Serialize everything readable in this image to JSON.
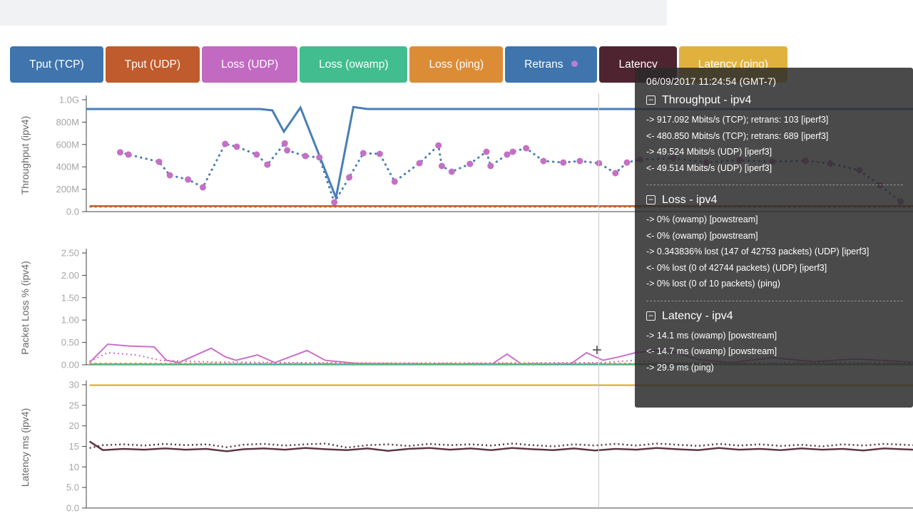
{
  "cursor": {
    "glyph": "+"
  },
  "legend": {
    "buttons": [
      {
        "label": "Tput (TCP)",
        "color": "#3f74ad",
        "dot": null
      },
      {
        "label": "Tput (UDP)",
        "color": "#bf5b2d",
        "dot": null
      },
      {
        "label": "Loss (UDP)",
        "color": "#c269c2",
        "dot": null
      },
      {
        "label": "Loss (owamp)",
        "color": "#41bd90",
        "dot": null
      },
      {
        "label": "Loss (ping)",
        "color": "#dd8c36",
        "dot": null
      },
      {
        "label": "Retrans",
        "color": "#3f74ad",
        "dot": "#b97fd4"
      },
      {
        "label": "Latency",
        "color": "#4e2430",
        "dot": null
      },
      {
        "label": "Latency (ping)",
        "color": "#e0b23d",
        "dot": null
      }
    ]
  },
  "tooltip": {
    "timestamp": "06/09/2017 11:24:54 (GMT-7)",
    "collapse_glyph": "−",
    "sections": [
      {
        "title": "Throughput - ipv4",
        "lines": [
          "-> 917.092 Mbits/s (TCP); retrans: 103 [iperf3]",
          "<- 480.850 Mbits/s (TCP); retrans: 689 [iperf3]",
          "-> 49.524 Mbits/s (UDP) [iperf3]",
          "<- 49.514 Mbits/s (UDP) [iperf3]"
        ]
      },
      {
        "title": "Loss - ipv4",
        "lines": [
          "-> 0% (owamp) [powstream]",
          "<- 0% (owamp) [powstream]",
          "-> 0.343836% lost (147 of 42753 packets) (UDP) [iperf3]",
          "<- 0% lost (0 of 42744 packets) (UDP) [iperf3]",
          "-> 0% lost (0 of 10 packets) (ping)"
        ]
      },
      {
        "title": "Latency - ipv4",
        "lines": [
          "-> 14.1 ms (owamp) [powstream]",
          "<- 14.7 ms (owamp) [powstream]",
          "-> 29.9 ms (ping)"
        ]
      }
    ]
  },
  "chart_data": [
    {
      "type": "line",
      "ylabel": "Throughput (ipv4)",
      "ylim": [
        0,
        1000
      ],
      "yticks": [
        [
          1000,
          "1.0G"
        ],
        [
          800,
          "800M"
        ],
        [
          600,
          "600M"
        ],
        [
          400,
          "400M"
        ],
        [
          200,
          "200M"
        ],
        [
          0,
          "0.0"
        ]
      ],
      "series": [
        {
          "name": "tput-tcp",
          "color": "#4a7eb5",
          "width": 3,
          "values": [
            [
              0,
              917
            ],
            [
              0.21,
              917
            ],
            [
              0.225,
              905
            ],
            [
              0.239,
              715
            ],
            [
              0.259,
              930
            ],
            [
              0.302,
              125
            ],
            [
              0.323,
              935
            ],
            [
              0.34,
              917
            ],
            [
              0.6,
              917
            ],
            [
              1,
              917
            ]
          ]
        },
        {
          "name": "retrans",
          "color": "#4a7eb5",
          "width": 3,
          "dash": "0.5,7",
          "linecap": "round",
          "marker": "#c470c4",
          "values": [
            [
              0.041,
              530
            ],
            [
              0.051,
              510
            ],
            [
              0.088,
              445
            ],
            [
              0.101,
              325
            ],
            [
              0.123,
              287
            ],
            [
              0.141,
              217
            ],
            [
              0.168,
              605
            ],
            [
              0.182,
              580
            ],
            [
              0.206,
              510
            ],
            [
              0.219,
              420
            ],
            [
              0.24,
              610
            ],
            [
              0.243,
              548
            ],
            [
              0.265,
              497
            ],
            [
              0.282,
              484
            ],
            [
              0.3,
              83
            ],
            [
              0.318,
              306
            ],
            [
              0.335,
              522
            ],
            [
              0.355,
              516
            ],
            [
              0.373,
              268
            ],
            [
              0.403,
              433
            ],
            [
              0.426,
              592
            ],
            [
              0.43,
              408
            ],
            [
              0.442,
              357
            ],
            [
              0.464,
              427
            ],
            [
              0.484,
              535
            ],
            [
              0.489,
              408
            ],
            [
              0.509,
              510
            ],
            [
              0.516,
              535
            ],
            [
              0.532,
              567
            ],
            [
              0.553,
              452
            ],
            [
              0.577,
              439
            ],
            [
              0.597,
              452
            ],
            [
              0.62,
              433
            ],
            [
              0.64,
              344
            ],
            [
              0.654,
              439
            ],
            [
              0.67,
              465
            ],
            [
              0.71,
              478
            ],
            [
              0.75,
              440
            ],
            [
              0.79,
              460
            ],
            [
              0.83,
              445
            ],
            [
              0.87,
              455
            ],
            [
              0.9,
              430
            ],
            [
              0.935,
              370
            ],
            [
              0.96,
              235
            ],
            [
              0.985,
              90
            ]
          ]
        },
        {
          "name": "tput-udp",
          "color": "#c0622f",
          "width": 2.5,
          "values": [
            [
              0.004,
              50
            ],
            [
              1,
              50
            ]
          ]
        },
        {
          "name": "tput-udp-rev",
          "color": "#c0622f",
          "width": 2,
          "dash": "3,4",
          "values": [
            [
              0.004,
              42
            ],
            [
              1,
              42
            ]
          ]
        }
      ]
    },
    {
      "type": "line",
      "ylabel": "Packet Loss % (ipv4)",
      "ylim": [
        0,
        2.5
      ],
      "yticks": [
        [
          2.5,
          "2.50"
        ],
        [
          2,
          "2.00"
        ],
        [
          1.5,
          "1.50"
        ],
        [
          1,
          "1.00"
        ],
        [
          0.5,
          "0.50"
        ],
        [
          0,
          "0.00"
        ]
      ],
      "series": [
        {
          "name": "loss-udp-fwd",
          "color": "#cb6fcb",
          "width": 2,
          "values": [
            [
              0.004,
              0.05
            ],
            [
              0.026,
              0.46
            ],
            [
              0.052,
              0.42
            ],
            [
              0.082,
              0.4
            ],
            [
              0.097,
              0.1
            ],
            [
              0.112,
              0.05
            ],
            [
              0.151,
              0.37
            ],
            [
              0.168,
              0.18
            ],
            [
              0.181,
              0.1
            ],
            [
              0.207,
              0.22
            ],
            [
              0.228,
              0.05
            ],
            [
              0.267,
              0.32
            ],
            [
              0.289,
              0.1
            ],
            [
              0.328,
              0.03
            ],
            [
              0.4,
              0.02
            ],
            [
              0.491,
              0.02
            ],
            [
              0.509,
              0.24
            ],
            [
              0.526,
              0.02
            ],
            [
              0.586,
              0.02
            ],
            [
              0.605,
              0.27
            ],
            [
              0.625,
              0.1
            ],
            [
              0.645,
              0.18
            ],
            [
              0.664,
              0.27
            ],
            [
              0.7,
              0.34
            ],
            [
              0.74,
              0.12
            ],
            [
              0.78,
              0.05
            ],
            [
              0.83,
              0.16
            ],
            [
              0.88,
              0.07
            ],
            [
              0.93,
              0.13
            ],
            [
              1,
              0.06
            ]
          ]
        },
        {
          "name": "loss-udp-rev",
          "color": "#cb6fcb",
          "width": 2,
          "dash": "2,4",
          "values": [
            [
              0.004,
              0.08
            ],
            [
              0.026,
              0.27
            ],
            [
              0.06,
              0.22
            ],
            [
              0.09,
              0.1
            ],
            [
              0.15,
              0.06
            ],
            [
              0.25,
              0.05
            ],
            [
              0.35,
              0.04
            ],
            [
              0.5,
              0.04
            ],
            [
              0.625,
              0.05
            ],
            [
              0.664,
              0.1
            ],
            [
              0.7,
              0.05
            ],
            [
              0.8,
              0.04
            ],
            [
              0.9,
              0.05
            ],
            [
              1,
              0.04
            ]
          ]
        },
        {
          "name": "loss-owamp",
          "color": "#41bd90",
          "width": 2,
          "values": [
            [
              0.004,
              0.015
            ],
            [
              1,
              0.015
            ]
          ]
        },
        {
          "name": "loss-ping",
          "color": "#dd8c36",
          "width": 2,
          "dash": "3,4",
          "values": [
            [
              0.004,
              0.03
            ],
            [
              1,
              0.03
            ]
          ]
        }
      ]
    },
    {
      "type": "line",
      "ylabel": "Latency ms (ipv4)",
      "ylim": [
        0,
        30
      ],
      "yticks": [
        [
          30,
          "30"
        ],
        [
          25,
          "25"
        ],
        [
          20,
          "20"
        ],
        [
          15,
          "15"
        ],
        [
          10,
          "10"
        ],
        [
          5,
          "5.0"
        ],
        [
          0,
          "0.0"
        ]
      ],
      "series": [
        {
          "name": "latency-ping",
          "color": "#e2b73d",
          "width": 2.5,
          "values": [
            [
              0.004,
              29.9
            ],
            [
              1,
              29.9
            ]
          ]
        },
        {
          "name": "latency-owamp-fwd",
          "color": "#5c3642",
          "width": 2.5,
          "values": [
            [
              0.004,
              16.2
            ],
            [
              0.02,
              14.1
            ],
            [
              0.045,
              14.4
            ],
            [
              0.07,
              14.2
            ],
            [
              0.095,
              14.5
            ],
            [
              0.12,
              14.2
            ],
            [
              0.145,
              14.4
            ],
            [
              0.17,
              13.8
            ],
            [
              0.19,
              14.3
            ],
            [
              0.215,
              14.5
            ],
            [
              0.24,
              14.2
            ],
            [
              0.265,
              14.6
            ],
            [
              0.29,
              14.3
            ],
            [
              0.315,
              14.1
            ],
            [
              0.34,
              14.5
            ],
            [
              0.365,
              13.9
            ],
            [
              0.39,
              14.4
            ],
            [
              0.415,
              14.6
            ],
            [
              0.44,
              14.2
            ],
            [
              0.465,
              14.5
            ],
            [
              0.49,
              14.1
            ],
            [
              0.515,
              14.6
            ],
            [
              0.54,
              14.3
            ],
            [
              0.565,
              14.1
            ],
            [
              0.59,
              14.5
            ],
            [
              0.615,
              14.0
            ],
            [
              0.64,
              14.4
            ],
            [
              0.665,
              14.2
            ],
            [
              0.69,
              14.6
            ],
            [
              0.715,
              14.3
            ],
            [
              0.74,
              14.1
            ],
            [
              0.765,
              14.6
            ],
            [
              0.79,
              14.2
            ],
            [
              0.815,
              14.4
            ],
            [
              0.84,
              14.1
            ],
            [
              0.865,
              14.5
            ],
            [
              0.89,
              14.2
            ],
            [
              0.915,
              14.4
            ],
            [
              0.94,
              14.0
            ],
            [
              0.965,
              14.5
            ],
            [
              1,
              14.2
            ]
          ]
        },
        {
          "name": "latency-owamp-rev",
          "color": "#5c3642",
          "width": 2.5,
          "dash": "2,4",
          "values": [
            [
              0.004,
              14.6
            ],
            [
              0.02,
              15.3
            ],
            [
              0.045,
              15.5
            ],
            [
              0.07,
              15.2
            ],
            [
              0.095,
              15.6
            ],
            [
              0.12,
              15.3
            ],
            [
              0.145,
              15.5
            ],
            [
              0.17,
              14.8
            ],
            [
              0.19,
              15.4
            ],
            [
              0.215,
              15.6
            ],
            [
              0.24,
              15.2
            ],
            [
              0.265,
              15.5
            ],
            [
              0.29,
              15.7
            ],
            [
              0.315,
              14.7
            ],
            [
              0.34,
              15.3
            ],
            [
              0.365,
              15.5
            ],
            [
              0.39,
              15.1
            ],
            [
              0.415,
              15.6
            ],
            [
              0.44,
              15.3
            ],
            [
              0.465,
              15.5
            ],
            [
              0.49,
              15.2
            ],
            [
              0.515,
              15.7
            ],
            [
              0.54,
              15.3
            ],
            [
              0.565,
              15.0
            ],
            [
              0.59,
              15.5
            ],
            [
              0.615,
              15.2
            ],
            [
              0.64,
              15.6
            ],
            [
              0.665,
              15.2
            ],
            [
              0.69,
              15.7
            ],
            [
              0.715,
              15.4
            ],
            [
              0.74,
              15.1
            ],
            [
              0.765,
              15.6
            ],
            [
              0.79,
              15.2
            ],
            [
              0.815,
              15.5
            ],
            [
              0.84,
              15.1
            ],
            [
              0.865,
              15.4
            ],
            [
              0.89,
              15.0
            ],
            [
              0.915,
              15.5
            ],
            [
              0.94,
              15.2
            ],
            [
              0.965,
              15.6
            ],
            [
              1,
              15.3
            ]
          ]
        }
      ]
    }
  ]
}
